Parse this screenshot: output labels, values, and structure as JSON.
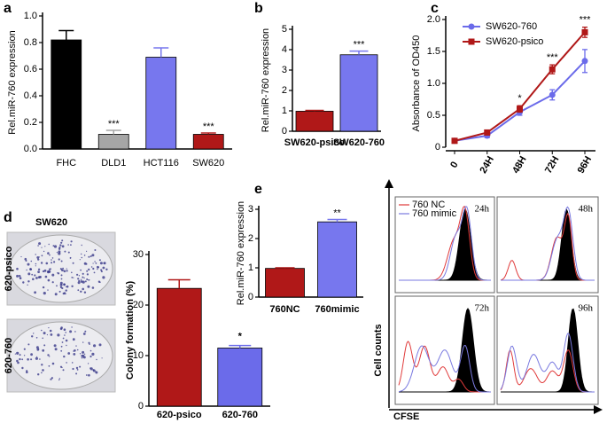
{
  "chart_data": [
    {
      "type": "bar",
      "panel": "a",
      "ylabel": "Rel.miR-760 expression",
      "categories": [
        "FHC",
        "DLD1",
        "HCT116",
        "SW620"
      ],
      "values": [
        0.82,
        0.11,
        0.69,
        0.11
      ],
      "errors": [
        0.07,
        0.03,
        0.07,
        0.01
      ],
      "colors": [
        "#000000",
        "#a6a6a6",
        "#7777ee",
        "#b01818"
      ],
      "significance": [
        null,
        "***",
        null,
        "***"
      ],
      "ylim": [
        0,
        1
      ],
      "yticks": [
        {
          "value": 0,
          "label": "0.0"
        },
        0.2,
        0.4,
        0.6,
        0.8,
        {
          "value": 1,
          "label": "1.0"
        }
      ]
    },
    {
      "type": "bar",
      "panel": "b",
      "ylabel": "Rel.miR-760 expression",
      "categories": [
        "SW620-psico",
        "SW620-760"
      ],
      "values": [
        0.98,
        3.75
      ],
      "errors": [
        0.04,
        0.18
      ],
      "colors": [
        "#b01818",
        "#7777ee"
      ],
      "significance": [
        null,
        "***"
      ],
      "ylim": [
        0,
        5
      ],
      "yticks": [
        0,
        1,
        2,
        3,
        4,
        5
      ]
    },
    {
      "type": "line",
      "panel": "c",
      "ylabel": "Absorbance of OD450",
      "categories": [
        "0",
        "24H",
        "48H",
        "72H",
        "96H"
      ],
      "series": [
        {
          "name": "SW620-760",
          "color": "#6b6bea",
          "values": [
            0.1,
            0.18,
            0.55,
            0.82,
            1.35
          ],
          "errors": [
            0.02,
            0.03,
            0.05,
            0.08,
            0.18
          ]
        },
        {
          "name": "SW620-psico",
          "color": "#b01818",
          "values": [
            0.1,
            0.23,
            0.6,
            1.22,
            1.8
          ],
          "errors": [
            0.02,
            0.03,
            0.05,
            0.07,
            0.08
          ]
        }
      ],
      "significance": [
        null,
        null,
        "*",
        "***",
        "***"
      ],
      "ylim": [
        0,
        2
      ],
      "yticks": [
        0,
        0.5,
        {
          "value": 1,
          "label": "1.0"
        },
        1.5,
        {
          "value": 2,
          "label": "2.0"
        }
      ]
    },
    {
      "type": "bar",
      "panel": "d",
      "title": "SW620",
      "image_labels": [
        "620-psico",
        "620-760"
      ],
      "ylabel": "Colony formation (%)",
      "categories": [
        "620-psico",
        "620-760"
      ],
      "values": [
        23.3,
        11.5
      ],
      "errors": [
        1.7,
        0.5
      ],
      "colors": [
        "#b01818",
        "#6b6bea"
      ],
      "significance": [
        null,
        "*"
      ],
      "ylim": [
        0,
        30
      ],
      "yticks": [
        0,
        10,
        20,
        30
      ]
    },
    {
      "type": "bar",
      "panel": "e",
      "ylabel": "Rel.miR-760 expression",
      "categories": [
        "760NC",
        "760mimic"
      ],
      "values": [
        0.98,
        2.57
      ],
      "errors": [
        0.02,
        0.08
      ],
      "colors": [
        "#b01818",
        "#7777ee"
      ],
      "significance": [
        null,
        "**"
      ],
      "ylim": [
        0,
        3
      ],
      "yticks": [
        0,
        1,
        2,
        3
      ]
    },
    {
      "type": "flow",
      "ylabel": "Cell counts",
      "xlabel": "CFSE",
      "panels": [
        "24h",
        "48h",
        "72h",
        "96h"
      ],
      "series": [
        {
          "name": "760 NC",
          "color": "#e03a3a"
        },
        {
          "name": "760 mimic",
          "color": "#7a7ae0"
        }
      ]
    }
  ]
}
